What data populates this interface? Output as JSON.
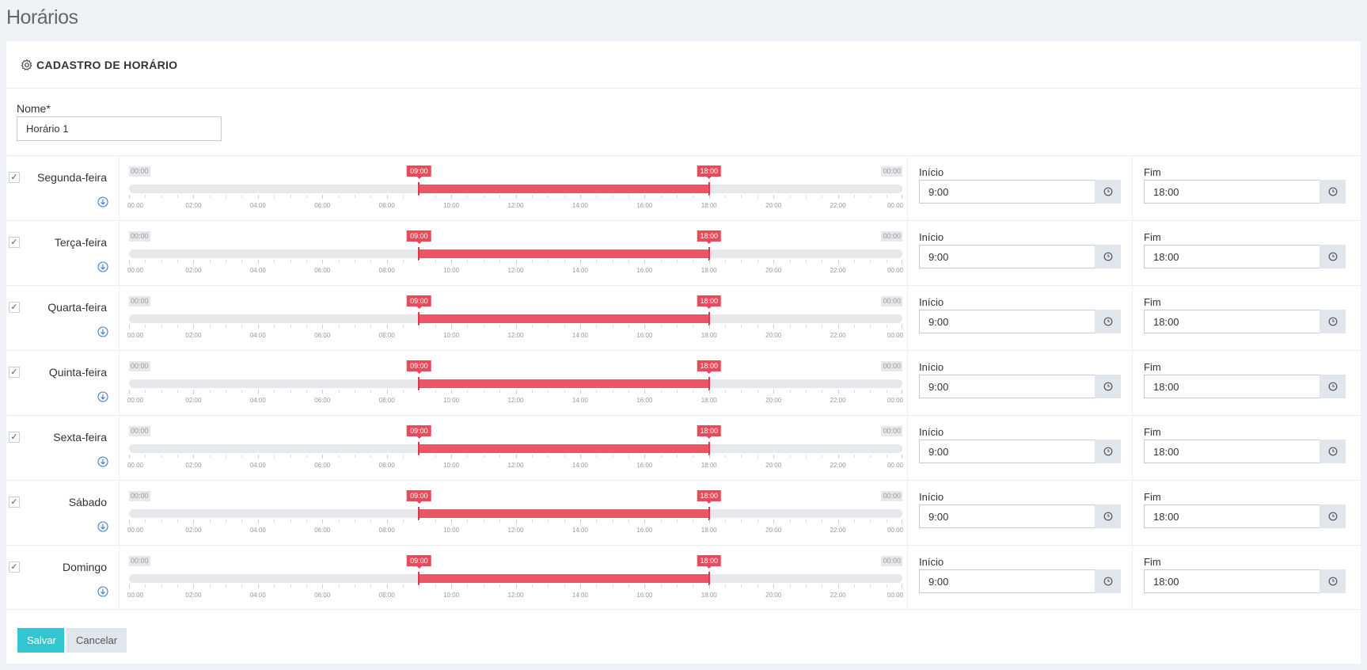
{
  "page": {
    "title": "Horários"
  },
  "card": {
    "title": "CADASTRO DE HORÁRIO",
    "icon": "gear-icon"
  },
  "form": {
    "name_label": "Nome*",
    "name_value": "Horário 1"
  },
  "slider": {
    "min_label": "00:00",
    "max_label": "00:00",
    "min_hour": 0,
    "max_hour": 24,
    "tick_labels": [
      "00:00",
      "02:00",
      "04:00",
      "06:00",
      "08:00",
      "10:00",
      "12:00",
      "14:00",
      "16:00",
      "18:00",
      "20:00",
      "22:00",
      "00:00"
    ]
  },
  "days": [
    {
      "name": "Segunda-feira",
      "checked": true,
      "start_hour": 9,
      "end_hour": 18,
      "start_badge": "09:00",
      "end_badge": "18:00",
      "start_label": "Início",
      "start_value": "9:00",
      "end_label": "Fim",
      "end_value": "18:00"
    },
    {
      "name": "Terça-feira",
      "checked": true,
      "start_hour": 9,
      "end_hour": 18,
      "start_badge": "09:00",
      "end_badge": "18:00",
      "start_label": "Início",
      "start_value": "9:00",
      "end_label": "Fim",
      "end_value": "18:00"
    },
    {
      "name": "Quarta-feira",
      "checked": true,
      "start_hour": 9,
      "end_hour": 18,
      "start_badge": "09:00",
      "end_badge": "18:00",
      "start_label": "Início",
      "start_value": "9:00",
      "end_label": "Fim",
      "end_value": "18:00"
    },
    {
      "name": "Quinta-feira",
      "checked": true,
      "start_hour": 9,
      "end_hour": 18,
      "start_badge": "09:00",
      "end_badge": "18:00",
      "start_label": "Início",
      "start_value": "9:00",
      "end_label": "Fim",
      "end_value": "18:00"
    },
    {
      "name": "Sexta-feira",
      "checked": true,
      "start_hour": 9,
      "end_hour": 18,
      "start_badge": "09:00",
      "end_badge": "18:00",
      "start_label": "Início",
      "start_value": "9:00",
      "end_label": "Fim",
      "end_value": "18:00"
    },
    {
      "name": "Sábado",
      "checked": true,
      "start_hour": 9,
      "end_hour": 18,
      "start_badge": "09:00",
      "end_badge": "18:00",
      "start_label": "Início",
      "start_value": "9:00",
      "end_label": "Fim",
      "end_value": "18:00"
    },
    {
      "name": "Domingo",
      "checked": true,
      "start_hour": 9,
      "end_hour": 18,
      "start_badge": "09:00",
      "end_badge": "18:00",
      "start_label": "Início",
      "start_value": "9:00",
      "end_label": "Fim",
      "end_value": "18:00"
    }
  ],
  "actions": {
    "save_label": "Salvar",
    "cancel_label": "Cancelar"
  },
  "colors": {
    "accent": "#32c5d2",
    "range": "#ec5565",
    "background": "#eef1f5"
  }
}
